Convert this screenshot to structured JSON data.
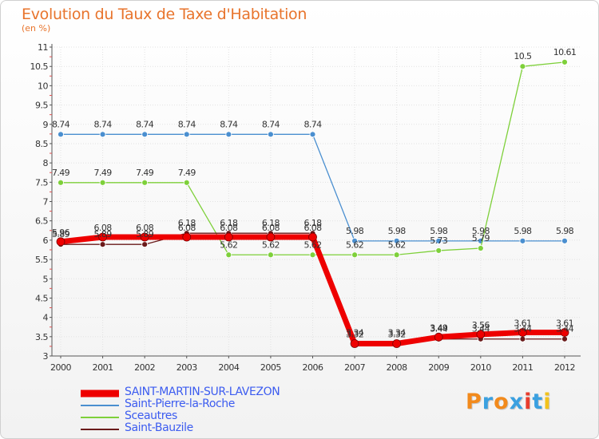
{
  "title": "Evolution du Taux de Taxe d'Habitation",
  "subtitle": "(en %)",
  "logo": {
    "text": "Proxiti",
    "colors": [
      "#f28a1c",
      "#3aa0e0",
      "#f28a1c",
      "#3aa0e0",
      "#e83c2c",
      "#3aa0e0",
      "#f2c21c"
    ]
  },
  "chart_data": {
    "type": "line",
    "title": "Evolution du Taux de Taxe d'Habitation",
    "ylabel": "(en %)",
    "xlabel": "",
    "x": [
      "2000",
      "2001",
      "2002",
      "2003",
      "2004",
      "2005",
      "2006",
      "2007",
      "2008",
      "2009",
      "2010",
      "2011",
      "2012"
    ],
    "ylim": [
      3,
      11
    ],
    "yticks": [
      "3",
      "3.5",
      "4",
      "4.5",
      "5",
      "5.5",
      "6",
      "6.5",
      "7",
      "7.5",
      "8",
      "8.5",
      "9",
      "9.5",
      "10",
      "10.5",
      "11"
    ],
    "grid": true,
    "legend_position": "bottom-left",
    "series": [
      {
        "name": "SAINT-MARTIN-SUR-LAVEZON",
        "color": "#ee0000",
        "values": [
          5.96,
          6.08,
          6.08,
          6.08,
          6.08,
          6.08,
          6.08,
          3.32,
          3.32,
          3.49,
          3.56,
          3.61,
          3.61
        ],
        "labels": [
          "5.96",
          "6.08",
          "6.08",
          "6.08",
          "6.08",
          "6.08",
          "6.08",
          "3.32",
          "3.32",
          "3.49",
          "3.56",
          "3.61",
          "3.61"
        ]
      },
      {
        "name": "Saint-Pierre-la-Roche",
        "color": "#4a8fd0",
        "values": [
          8.74,
          8.74,
          8.74,
          8.74,
          8.74,
          8.74,
          8.74,
          5.98,
          5.98,
          5.98,
          5.98,
          5.98,
          5.98
        ],
        "labels": [
          "8.74",
          "8.74",
          "8.74",
          "8.74",
          "8.74",
          "8.74",
          "8.74",
          "5.98",
          "5.98",
          "5.98",
          "5.98",
          "5.98",
          "5.98"
        ]
      },
      {
        "name": "Sceautres",
        "color": "#7ed03a",
        "values": [
          7.49,
          7.49,
          7.49,
          7.49,
          5.62,
          5.62,
          5.62,
          5.62,
          5.62,
          5.73,
          5.79,
          10.5,
          10.61
        ],
        "labels": [
          "7.49",
          "7.49",
          "7.49",
          "7.49",
          "5.62",
          "5.62",
          "5.62",
          "5.62",
          "5.62",
          "5.73",
          "5.79",
          "10.5",
          "10.61"
        ]
      },
      {
        "name": "Saint-Bauzile",
        "color": "#6a1a1a",
        "values": [
          5.89,
          5.89,
          5.89,
          6.18,
          6.18,
          6.18,
          6.18,
          3.34,
          3.34,
          3.44,
          3.44,
          3.44,
          3.44
        ],
        "labels": [
          "5.89",
          "5.89",
          "5.89",
          "6.18",
          "6.18",
          "6.18",
          "6.18",
          "3.34",
          "3.34",
          "3.44",
          "3.44",
          "3.44",
          "3.44"
        ]
      }
    ]
  }
}
